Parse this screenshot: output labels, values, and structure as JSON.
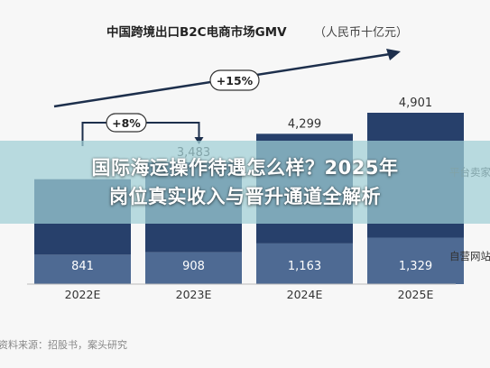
{
  "chart_data": {
    "type": "bar",
    "title": "中国跨境出口B2C电商市场GMV",
    "unit": "（人民币十亿元）",
    "categories": [
      "2022E",
      "2023E",
      "2024E",
      "2025E"
    ],
    "totals": [
      null,
      3483,
      4299,
      4901
    ],
    "series": [
      {
        "name": "自营网站",
        "values": [
          841,
          908,
          1163,
          1329
        ]
      },
      {
        "name": "平台卖家",
        "values": [
          null,
          null,
          null,
          null
        ]
      }
    ],
    "growth_annotations": [
      {
        "label": "+8%",
        "from": "2022E",
        "to": "2023E"
      },
      {
        "label": "+15%",
        "from": "2022E",
        "to": "2025E"
      }
    ],
    "ylim": [
      0,
      5000
    ],
    "grid": false,
    "legend": "right",
    "colors": {
      "bottom": "#4e6a93",
      "top": "#27406b",
      "arrow": "#1d2f4c"
    },
    "source": "资料来源：招股书，案头研究"
  },
  "overlay": {
    "headline_line1": "国际海运操作待遇怎么样？2025年",
    "headline_line2": "岗位真实收入与晋升通道全解析"
  }
}
